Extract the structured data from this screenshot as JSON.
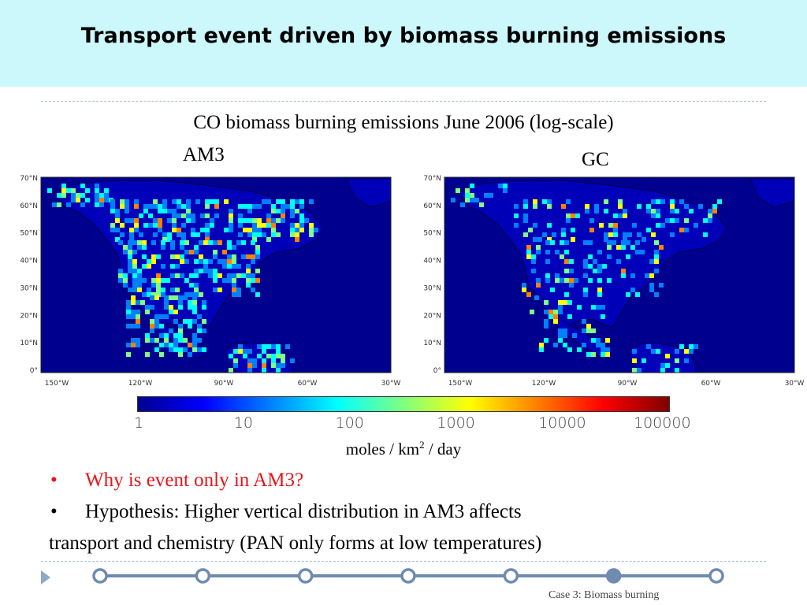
{
  "slide": {
    "title": "Transport event driven by biomass burning emissions",
    "subtitle": "CO biomass burning emissions June 2006 (log-scale)",
    "maps": [
      {
        "label": "AM3",
        "lat_labels": [
          "70°N",
          "60°N",
          "50°N",
          "40°N",
          "30°N",
          "20°N",
          "10°N",
          "0°"
        ],
        "lon_labels": [
          "150°W",
          "120°W",
          "90°W",
          "60°W",
          "30°W"
        ]
      },
      {
        "label": "GC",
        "lat_labels": [
          "70°N",
          "60°N",
          "50°N",
          "40°N",
          "30°N",
          "20°N",
          "10°N",
          "0°"
        ],
        "lon_labels": [
          "150°W",
          "120°W",
          "90°W",
          "60°W",
          "30°W"
        ]
      }
    ],
    "colorbar": {
      "ticks": [
        "1",
        "10",
        "100",
        "1000",
        "10000",
        "100000"
      ],
      "colors": [
        "#00008f",
        "#0000ff",
        "#0080ff",
        "#00ffff",
        "#80ff80",
        "#ffff00",
        "#ff8000",
        "#ff0000",
        "#800000"
      ]
    },
    "units": {
      "prefix": "moles / km",
      "superscript": "2",
      "suffix": " / day"
    },
    "bullets": [
      {
        "text": "Why is event only in AM3?",
        "color": "#e8151b"
      },
      {
        "text": "Hypothesis:  Higher vertical distribution in AM3 affects",
        "color": "#000000"
      }
    ],
    "bullet_continuation": "transport and chemistry (PAN only forms at low temperatures)",
    "footer": "Case 3: Biomass burning",
    "timeline": {
      "count": 7,
      "active_index": 5,
      "color": "#6f8bb0",
      "active_color": "#6f8bb0"
    }
  }
}
